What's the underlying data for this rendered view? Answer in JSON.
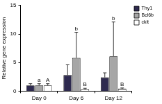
{
  "chart_data": {
    "type": "bar",
    "y_label": "Relative gene expression",
    "categories": [
      "Day 0",
      "Day 6",
      "Day 12"
    ],
    "series": [
      {
        "name": "Thy1",
        "color": "#2e2a4f",
        "values": [
          1.0,
          2.8,
          2.4
        ],
        "errors": [
          0.3,
          1.8,
          0.8
        ]
      },
      {
        "name": "Bcl6b",
        "color": "#a6a6a6",
        "values": [
          1.0,
          5.8,
          6.1
        ],
        "errors": [
          0.3,
          4.5,
          6.0
        ],
        "letters": [
          "a",
          "b",
          "b"
        ]
      },
      {
        "name": "ckit",
        "color": "#ffffff",
        "values": [
          1.0,
          0.3,
          0.4
        ],
        "errors": [
          0.3,
          0.2,
          0.15
        ],
        "letters": [
          "A",
          "B",
          "B"
        ]
      }
    ],
    "ylim": [
      0,
      15
    ],
    "yticks": [
      0,
      5,
      10,
      15
    ],
    "grid": false,
    "legend": "right"
  }
}
